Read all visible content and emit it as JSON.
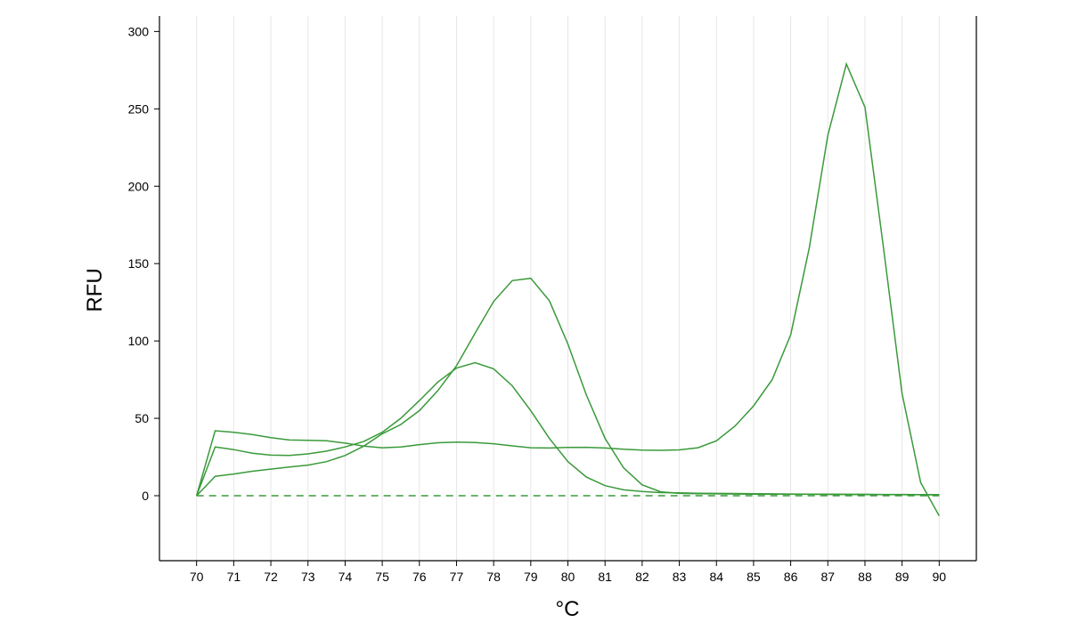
{
  "chart_data": {
    "type": "line",
    "title": "",
    "xlabel": "°C",
    "ylabel": "RFU",
    "xlim": [
      69,
      91
    ],
    "ylim": [
      -42,
      310
    ],
    "xticks": [
      70,
      71,
      72,
      73,
      74,
      75,
      76,
      77,
      78,
      79,
      80,
      81,
      82,
      83,
      84,
      85,
      86,
      87,
      88,
      89,
      90
    ],
    "yticks": [
      0,
      50,
      100,
      150,
      200,
      250,
      300
    ],
    "grid": "vertical",
    "line_color": "#3a9a3a",
    "grid_color": "#e6e6e6",
    "x": [
      70,
      70.5,
      71,
      71.5,
      72,
      72.5,
      73,
      73.5,
      74,
      74.5,
      75,
      75.5,
      76,
      76.5,
      77,
      77.5,
      78,
      78.5,
      79,
      79.5,
      80,
      80.5,
      81,
      81.5,
      82,
      82.5,
      83,
      83.5,
      84,
      84.5,
      85,
      85.5,
      86,
      86.5,
      87,
      87.5,
      88,
      88.5,
      89,
      89.5,
      90
    ],
    "series": [
      {
        "values": [
          0,
          42,
          41,
          39.5,
          37.5,
          36,
          35.8,
          35.5,
          34,
          32,
          31,
          31.5,
          33,
          34.2,
          34.6,
          34.4,
          33.6,
          32.2,
          31,
          30.8,
          31.2,
          31.3,
          30.8,
          30,
          29.5,
          29.3,
          29.6,
          31,
          35.5,
          45,
          58,
          75,
          104,
          160,
          233,
          279,
          251,
          160,
          66,
          8.5,
          -13
        ]
      },
      {
        "values": [
          0,
          12.5,
          14,
          15.8,
          17.2,
          18.5,
          19.8,
          22,
          26,
          32,
          40,
          46,
          55,
          68,
          84,
          105,
          125.5,
          139,
          140.5,
          126,
          98,
          65,
          37,
          18,
          7,
          2.5,
          1.5,
          1.3,
          1.2,
          1.1,
          1,
          1,
          0.9,
          0.9,
          0.8,
          0.8,
          0.7,
          0.7,
          0.6,
          0.6,
          0.5
        ]
      },
      {
        "values": [
          0,
          31.5,
          29.8,
          27.5,
          26.2,
          26,
          27,
          28.8,
          31.5,
          35,
          41,
          50,
          61.5,
          73.5,
          82.5,
          86,
          82,
          71,
          55,
          37,
          22,
          12,
          6.5,
          3.8,
          2.7,
          2,
          1.8,
          1.6,
          1.5,
          1.4,
          1.3,
          1.2,
          1.1,
          1,
          1,
          0.9,
          0.9,
          0.8,
          0.8,
          0.7,
          0.7
        ]
      }
    ],
    "baseline": {
      "value": 0,
      "style": "dashed"
    }
  }
}
